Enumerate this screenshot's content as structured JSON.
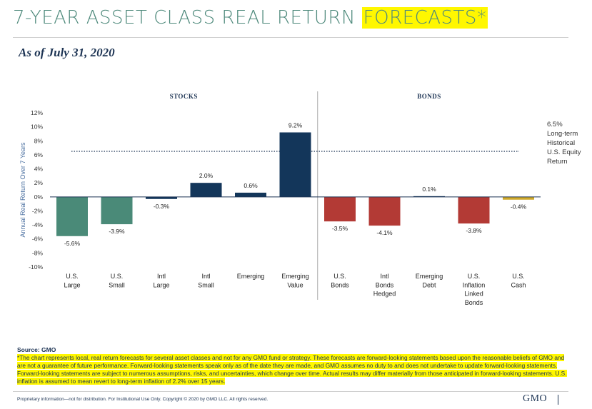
{
  "header": {
    "title_main": "7-YEAR ASSET CLASS REAL RETURN ",
    "title_highlight": "FORECASTS*",
    "subtitle": "As of July 31, 2020"
  },
  "chart_data": {
    "type": "bar",
    "title": "7-Year Asset Class Real Return Forecasts",
    "ylabel": "Annual Real Return Over 7 Years",
    "xlabel": "",
    "ylim": [
      -10,
      12
    ],
    "yticks": [
      12,
      10,
      8,
      6,
      4,
      2,
      0,
      -2,
      -4,
      -6,
      -8,
      -10
    ],
    "ytick_labels": [
      "12%",
      "10%",
      "8%",
      "6%",
      "4%",
      "2%",
      "0%",
      "-2%",
      "-4%",
      "-6%",
      "-8%",
      "-10%"
    ],
    "groups": [
      {
        "label": "STOCKS",
        "start": 0,
        "end": 5
      },
      {
        "label": "BONDS",
        "start": 6,
        "end": 10
      }
    ],
    "categories": [
      [
        "U.S.",
        "Large"
      ],
      [
        "U.S.",
        "Small"
      ],
      [
        "Intl",
        "Large"
      ],
      [
        "Intl",
        "Small"
      ],
      [
        "Emerging"
      ],
      [
        "Emerging",
        "Value"
      ],
      [
        "U.S.",
        "Bonds"
      ],
      [
        "Intl",
        "Bonds",
        "Hedged"
      ],
      [
        "Emerging",
        "Debt"
      ],
      [
        "U.S.",
        "Inflation",
        "Linked",
        "Bonds"
      ],
      [
        "U.S.",
        "Cash"
      ]
    ],
    "values": [
      -5.6,
      -3.9,
      -0.3,
      2.0,
      0.6,
      9.2,
      -3.5,
      -4.1,
      0.1,
      -3.8,
      -0.4
    ],
    "value_labels": [
      "-5.6%",
      "-3.9%",
      "-0.3%",
      "2.0%",
      "0.6%",
      "9.2%",
      "-3.5%",
      "-4.1%",
      "0.1%",
      "-3.8%",
      "-0.4%"
    ],
    "colors": [
      "#4a8a78",
      "#4a8a78",
      "#13365a",
      "#13365a",
      "#13365a",
      "#13365a",
      "#b33a35",
      "#b33a35",
      "#13365a",
      "#b33a35",
      "#cfa92a"
    ],
    "reference_line": {
      "value": 6.5,
      "label_lines": [
        "6.5%",
        "Long-term",
        "Historical",
        "U.S. Equity",
        "Return"
      ]
    }
  },
  "footer": {
    "source": "Source: GMO",
    "footnote": "*The chart represents local, real return forecasts for several asset classes and not for any GMO fund or strategy. These forecasts are forward-looking statements based upon the reasonable beliefs of GMO and are not a guarantee of future performance. Forward-looking statements speak only as of the date they are made, and GMO assumes no duty to and does not undertake to update forward-looking statements. Forward-looking statements are subject to numerous assumptions, risks, and uncertainties, which change over time. Actual results may differ materially from those anticipated in forward-looking statements. U.S. inflation is assumed to mean revert to long-term inflation of 2.2% over 15 years.",
    "proprietary": "Proprietary information—not for distribution. For Institutional Use Only. Copyright © 2020 by GMO LLC. All rights reserved.",
    "logo": "GMO"
  },
  "colors": {
    "title": "#4f8a7c",
    "highlight": "#fff700",
    "navy": "#1c3353"
  }
}
